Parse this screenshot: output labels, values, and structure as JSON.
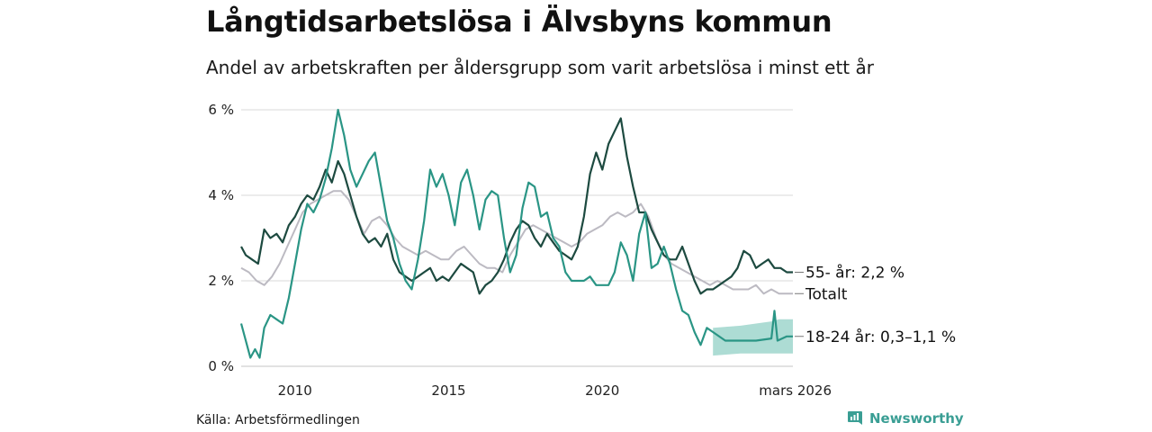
{
  "header": {
    "title": "Långtidsarbetslösa i Älvsbyns kommun",
    "subtitle": "Andel av arbetskraften per åldersgrupp som varit arbetslösa i minst ett år"
  },
  "footer": {
    "source": "Källa: Arbetsförmedlingen",
    "brand": "Newsworthy"
  },
  "colors": {
    "age_55": "#1d4a40",
    "total": "#bcbac2",
    "age_18_24": "#2a9585",
    "band": "#9fd6cc",
    "grid": "#d8d8d8",
    "brand": "#3a9e94"
  },
  "chart_data": {
    "type": "line",
    "title": "Långtidsarbetslösa i Älvsbyns kommun",
    "subtitle": "Andel av arbetskraften per åldersgrupp som varit arbetslösa i minst ett år",
    "xlabel": "",
    "ylabel": "",
    "x_range": [
      2008.25,
      2026.2
    ],
    "ylim": [
      0,
      6
    ],
    "y_ticks": [
      {
        "value": 0,
        "label": "0 %"
      },
      {
        "value": 2,
        "label": "2 %"
      },
      {
        "value": 4,
        "label": "4 %"
      },
      {
        "value": 6,
        "label": "6 %"
      }
    ],
    "x_ticks": [
      {
        "value": 2010,
        "label": "2010"
      },
      {
        "value": 2015,
        "label": "2015"
      },
      {
        "value": 2020,
        "label": "2020"
      },
      {
        "value": 2026.2,
        "label": "mars 2026"
      }
    ],
    "grid": true,
    "legend": "direct labels at line ends",
    "series": [
      {
        "name": "55- år",
        "end_label": "55- år: 2,2 %",
        "color_key": "age_55",
        "x": [
          2008.25,
          2008.4,
          2008.6,
          2008.8,
          2009.0,
          2009.2,
          2009.4,
          2009.6,
          2009.8,
          2010.0,
          2010.2,
          2010.4,
          2010.6,
          2010.8,
          2011.0,
          2011.2,
          2011.4,
          2011.6,
          2011.8,
          2012.0,
          2012.2,
          2012.4,
          2012.6,
          2012.8,
          2013.0,
          2013.2,
          2013.4,
          2013.6,
          2013.8,
          2014.0,
          2014.2,
          2014.4,
          2014.6,
          2014.8,
          2015.0,
          2015.2,
          2015.4,
          2015.6,
          2015.8,
          2016.0,
          2016.2,
          2016.4,
          2016.6,
          2016.8,
          2017.0,
          2017.2,
          2017.4,
          2017.6,
          2017.8,
          2018.0,
          2018.2,
          2018.4,
          2018.6,
          2018.8,
          2019.0,
          2019.2,
          2019.4,
          2019.6,
          2019.8,
          2020.0,
          2020.2,
          2020.4,
          2020.6,
          2020.8,
          2021.0,
          2021.2,
          2021.4,
          2021.6,
          2021.8,
          2022.0,
          2022.2,
          2022.4,
          2022.6,
          2022.8,
          2023.0,
          2023.2,
          2023.4,
          2023.6,
          2023.8,
          2024.0,
          2024.2,
          2024.4,
          2024.6,
          2024.8,
          2025.0,
          2025.2,
          2025.4,
          2025.6,
          2025.8,
          2026.0,
          2026.2
        ],
        "values": [
          2.8,
          2.6,
          2.5,
          2.4,
          3.2,
          3.0,
          3.1,
          2.9,
          3.3,
          3.5,
          3.8,
          4.0,
          3.9,
          4.2,
          4.6,
          4.3,
          4.8,
          4.5,
          4.0,
          3.5,
          3.1,
          2.9,
          3.0,
          2.8,
          3.1,
          2.5,
          2.2,
          2.1,
          2.0,
          2.1,
          2.2,
          2.3,
          2.0,
          2.1,
          2.0,
          2.2,
          2.4,
          2.3,
          2.2,
          1.7,
          1.9,
          2.0,
          2.2,
          2.5,
          2.9,
          3.2,
          3.4,
          3.3,
          3.0,
          2.8,
          3.1,
          2.9,
          2.7,
          2.6,
          2.5,
          2.8,
          3.5,
          4.5,
          5.0,
          4.6,
          5.2,
          5.5,
          5.8,
          4.9,
          4.2,
          3.6,
          3.6,
          3.2,
          2.9,
          2.6,
          2.5,
          2.5,
          2.8,
          2.4,
          2.0,
          1.7,
          1.8,
          1.8,
          1.9,
          2.0,
          2.1,
          2.3,
          2.7,
          2.6,
          2.3,
          2.4,
          2.5,
          2.3,
          2.3,
          2.2,
          2.2
        ]
      },
      {
        "name": "Totalt",
        "end_label": "Totalt",
        "color_key": "total",
        "x": [
          2008.25,
          2008.5,
          2008.75,
          2009.0,
          2009.25,
          2009.5,
          2009.75,
          2010.0,
          2010.25,
          2010.5,
          2010.75,
          2011.0,
          2011.25,
          2011.5,
          2011.75,
          2012.0,
          2012.25,
          2012.5,
          2012.75,
          2013.0,
          2013.25,
          2013.5,
          2013.75,
          2014.0,
          2014.25,
          2014.5,
          2014.75,
          2015.0,
          2015.25,
          2015.5,
          2015.75,
          2016.0,
          2016.25,
          2016.5,
          2016.75,
          2017.0,
          2017.25,
          2017.5,
          2017.75,
          2018.0,
          2018.25,
          2018.5,
          2018.75,
          2019.0,
          2019.25,
          2019.5,
          2019.75,
          2020.0,
          2020.25,
          2020.5,
          2020.75,
          2021.0,
          2021.25,
          2021.5,
          2021.75,
          2022.0,
          2022.25,
          2022.5,
          2022.75,
          2023.0,
          2023.25,
          2023.5,
          2023.75,
          2024.0,
          2024.25,
          2024.5,
          2024.75,
          2025.0,
          2025.25,
          2025.5,
          2025.75,
          2026.0,
          2026.2
        ],
        "values": [
          2.3,
          2.2,
          2.0,
          1.9,
          2.1,
          2.4,
          2.8,
          3.2,
          3.6,
          3.8,
          3.9,
          4.0,
          4.1,
          4.1,
          3.9,
          3.5,
          3.1,
          3.4,
          3.5,
          3.3,
          3.0,
          2.8,
          2.7,
          2.6,
          2.7,
          2.6,
          2.5,
          2.5,
          2.7,
          2.8,
          2.6,
          2.4,
          2.3,
          2.3,
          2.2,
          2.6,
          2.9,
          3.2,
          3.3,
          3.2,
          3.1,
          3.0,
          2.9,
          2.8,
          2.9,
          3.1,
          3.2,
          3.3,
          3.5,
          3.6,
          3.5,
          3.6,
          3.8,
          3.5,
          3.0,
          2.6,
          2.4,
          2.3,
          2.2,
          2.1,
          2.0,
          1.9,
          2.0,
          1.9,
          1.8,
          1.8,
          1.8,
          1.9,
          1.7,
          1.8,
          1.7,
          1.7,
          1.7
        ]
      },
      {
        "name": "18-24 år",
        "end_label": "18-24 år: 0,3–1,1 %",
        "color_key": "age_18_24",
        "x": [
          2008.25,
          2008.4,
          2008.55,
          2008.7,
          2008.85,
          2009.0,
          2009.2,
          2009.4,
          2009.6,
          2009.8,
          2010.0,
          2010.2,
          2010.4,
          2010.6,
          2010.8,
          2011.0,
          2011.2,
          2011.4,
          2011.6,
          2011.8,
          2012.0,
          2012.2,
          2012.4,
          2012.6,
          2012.8,
          2013.0,
          2013.2,
          2013.4,
          2013.6,
          2013.8,
          2014.0,
          2014.2,
          2014.4,
          2014.6,
          2014.8,
          2015.0,
          2015.2,
          2015.4,
          2015.6,
          2015.8,
          2016.0,
          2016.2,
          2016.4,
          2016.6,
          2016.8,
          2017.0,
          2017.2,
          2017.4,
          2017.6,
          2017.8,
          2018.0,
          2018.2,
          2018.4,
          2018.6,
          2018.8,
          2019.0,
          2019.2,
          2019.4,
          2019.6,
          2019.8,
          2020.0,
          2020.2,
          2020.4,
          2020.6,
          2020.8,
          2021.0,
          2021.2,
          2021.4,
          2021.6,
          2021.8,
          2022.0,
          2022.2,
          2022.4,
          2022.6,
          2022.8,
          2023.0,
          2023.2,
          2023.4,
          2023.6,
          2024.0,
          2024.5,
          2025.0,
          2025.5,
          2025.6,
          2025.7,
          2026.0,
          2026.2
        ],
        "values": [
          1.0,
          0.6,
          0.2,
          0.4,
          0.2,
          0.9,
          1.2,
          1.1,
          1.0,
          1.6,
          2.4,
          3.2,
          3.8,
          3.6,
          3.9,
          4.4,
          5.1,
          6.0,
          5.4,
          4.6,
          4.2,
          4.5,
          4.8,
          5.0,
          4.2,
          3.4,
          3.0,
          2.4,
          2.0,
          1.8,
          2.5,
          3.4,
          4.6,
          4.2,
          4.5,
          4.0,
          3.3,
          4.3,
          4.6,
          4.0,
          3.2,
          3.9,
          4.1,
          4.0,
          3.0,
          2.2,
          2.6,
          3.7,
          4.3,
          4.2,
          3.5,
          3.6,
          3.0,
          2.8,
          2.2,
          2.0,
          2.0,
          2.0,
          2.1,
          1.9,
          1.9,
          1.9,
          2.2,
          2.9,
          2.6,
          2.0,
          3.1,
          3.6,
          2.3,
          2.4,
          2.8,
          2.4,
          1.8,
          1.3,
          1.2,
          0.8,
          0.5,
          0.9,
          0.8,
          0.6,
          0.6,
          0.6,
          0.65,
          1.3,
          0.6,
          0.7,
          0.7
        ]
      }
    ],
    "uncertainty_band": {
      "series": "18-24 år",
      "x": [
        2023.6,
        2024.5,
        2025.5,
        2025.75,
        2026.2
      ],
      "lower": [
        0.25,
        0.3,
        0.3,
        0.3,
        0.3
      ],
      "upper": [
        0.9,
        0.95,
        1.05,
        1.1,
        1.1
      ]
    }
  }
}
